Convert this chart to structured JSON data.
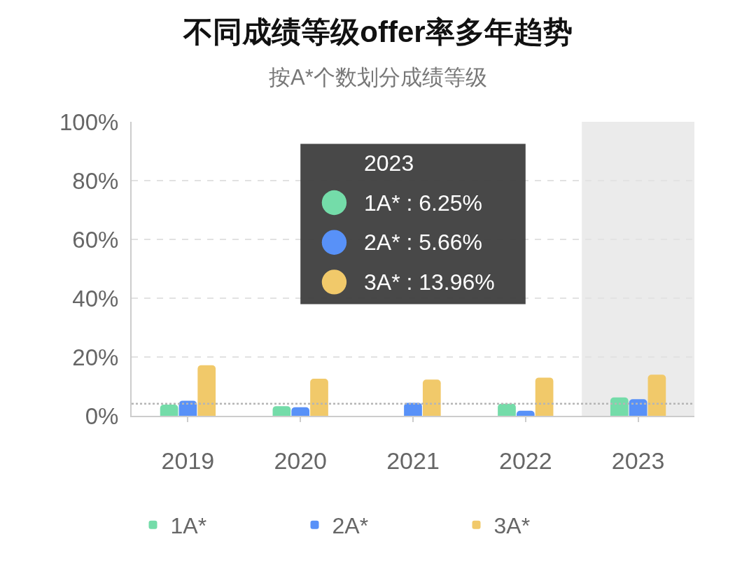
{
  "chart_data": {
    "type": "bar",
    "title": "不同成绩等级offer率多年趋势",
    "subtitle": "按A*个数划分成绩等级",
    "categories": [
      "2019",
      "2020",
      "2021",
      "2022",
      "2023"
    ],
    "series": [
      {
        "name": "1A*",
        "color": "#74dca9",
        "values": [
          3.8,
          3.3,
          null,
          4.1,
          6.25
        ]
      },
      {
        "name": "2A*",
        "color": "#5891f8",
        "values": [
          5.1,
          2.9,
          4.4,
          1.7,
          5.66
        ]
      },
      {
        "name": "3A*",
        "color": "#f1c96a",
        "values": [
          17.2,
          12.6,
          12.3,
          13.0,
          13.96
        ]
      }
    ],
    "ylim": [
      0,
      100
    ],
    "yticks": [
      {
        "value": 0,
        "label": "0%"
      },
      {
        "value": 20,
        "label": "20%"
      },
      {
        "value": 40,
        "label": "40%"
      },
      {
        "value": 60,
        "label": "60%"
      },
      {
        "value": 80,
        "label": "80%"
      },
      {
        "value": 100,
        "label": "100%"
      }
    ],
    "grid": "y",
    "legend": "bottom",
    "ref_lines": [
      {
        "axis": "y",
        "value": 4.1,
        "color": "#b5b5b5",
        "line_style": "dotted"
      }
    ],
    "bands": [
      {
        "axis": "x",
        "from": "2023",
        "to": "2023",
        "color": "#ebebeb"
      }
    ],
    "annotations": [
      "2023",
      "1A* : 6.25%",
      "2A* : 5.66%",
      "3A* : 13.96%"
    ]
  }
}
